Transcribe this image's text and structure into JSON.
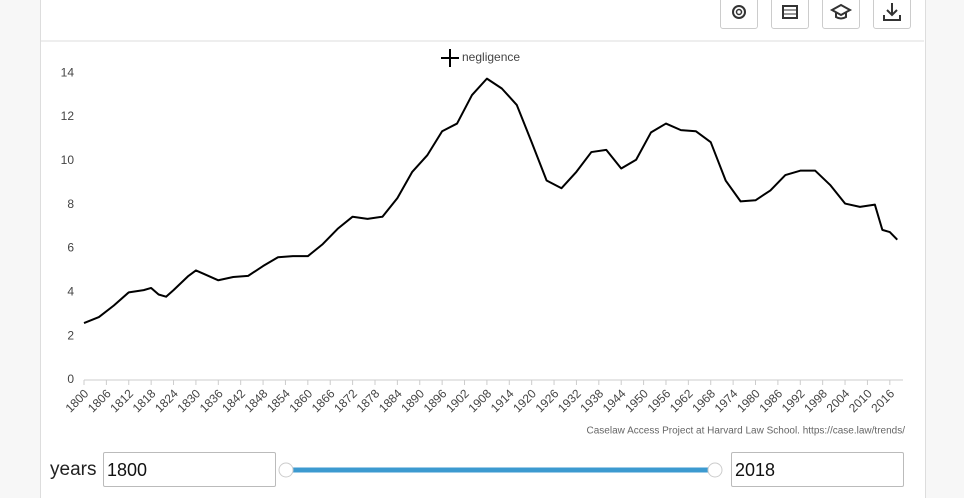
{
  "chart_data": {
    "type": "line",
    "x": [
      1800,
      1804,
      1808,
      1812,
      1816,
      1818,
      1820,
      1822,
      1824,
      1828,
      1830,
      1832,
      1836,
      1840,
      1844,
      1848,
      1852,
      1856,
      1860,
      1864,
      1868,
      1872,
      1876,
      1880,
      1884,
      1888,
      1892,
      1896,
      1900,
      1904,
      1908,
      1912,
      1916,
      1920,
      1924,
      1928,
      1932,
      1936,
      1940,
      1944,
      1948,
      1952,
      1956,
      1960,
      1964,
      1968,
      1972,
      1976,
      1980,
      1984,
      1988,
      1992,
      1996,
      2000,
      2004,
      2008,
      2012,
      2014,
      2016,
      2018
    ],
    "series": [
      {
        "name": "negligence",
        "color": "#000000",
        "values": [
          2.6,
          2.87,
          3.4,
          4.0,
          4.1,
          4.2,
          3.9,
          3.8,
          4.1,
          4.75,
          5.0,
          4.85,
          4.55,
          4.7,
          4.75,
          5.2,
          5.6,
          5.65,
          5.65,
          6.2,
          6.9,
          7.45,
          7.35,
          7.45,
          8.3,
          9.5,
          10.25,
          11.35,
          11.7,
          13.0,
          13.75,
          13.3,
          12.55,
          10.85,
          9.1,
          8.75,
          9.5,
          10.4,
          10.5,
          9.65,
          10.05,
          11.3,
          11.7,
          11.4,
          11.35,
          10.85,
          9.1,
          8.15,
          8.2,
          8.65,
          9.35,
          9.55,
          9.55,
          8.9,
          8.05,
          7.9,
          8.0,
          6.85,
          6.75,
          6.4
        ]
      }
    ],
    "xlim": [
      1800,
      2019
    ],
    "xticks": [
      1800,
      1806,
      1812,
      1818,
      1824,
      1830,
      1836,
      1842,
      1848,
      1854,
      1860,
      1866,
      1872,
      1878,
      1884,
      1890,
      1896,
      1902,
      1908,
      1914,
      1920,
      1926,
      1932,
      1938,
      1944,
      1950,
      1956,
      1962,
      1968,
      1974,
      1980,
      1986,
      1992,
      1998,
      2004,
      2010,
      2016
    ],
    "ylim": [
      0,
      14.6
    ],
    "yticks": [
      0,
      2,
      4,
      6,
      8,
      10,
      12,
      14
    ],
    "credit": "Caselaw Access Project at Harvard Law School. https://case.law/trends/"
  },
  "controls": {
    "label": "years",
    "start": "1800",
    "end": "2018"
  }
}
